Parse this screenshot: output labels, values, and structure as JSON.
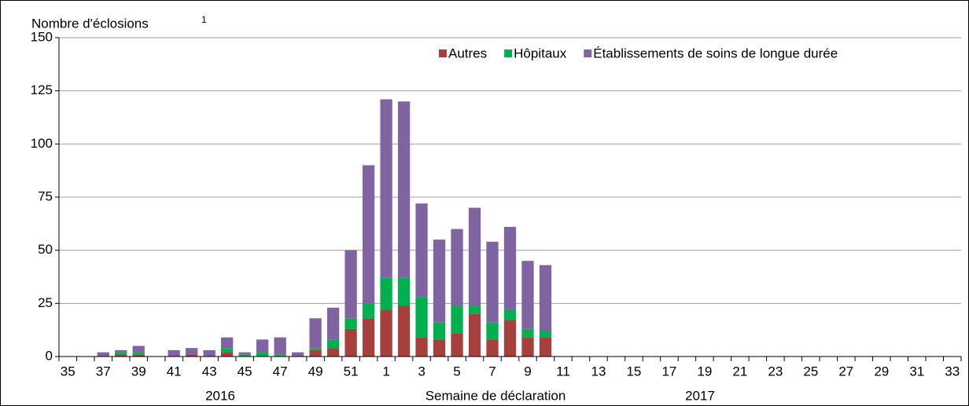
{
  "chart_data": {
    "type": "bar",
    "stacked": true,
    "ylabel": "Nombre d'éclosions",
    "ylabel_note": "1",
    "xlabel": "Semaine de déclaration",
    "annotations": [
      "2016",
      "2017"
    ],
    "categories": [
      "35",
      null,
      "37",
      null,
      "39",
      null,
      "41",
      null,
      "43",
      null,
      "45",
      null,
      "47",
      null,
      "49",
      null,
      "51",
      null,
      "1",
      null,
      "3",
      null,
      "5",
      null,
      "7",
      null,
      "9",
      null,
      "11",
      null,
      "13",
      null,
      "15",
      null,
      "17",
      null,
      "19",
      null,
      "21",
      null,
      "23",
      null,
      "25",
      null,
      "27",
      null,
      "29",
      null,
      "31",
      null,
      "33"
    ],
    "series": [
      {
        "name": "Autres",
        "color": "#a5403d",
        "values": [
          0,
          0,
          0,
          1,
          1,
          0,
          0,
          1,
          0,
          2,
          0,
          0,
          0,
          0,
          3,
          4,
          13,
          18,
          22,
          24,
          9,
          8,
          11,
          20,
          8,
          17,
          9,
          9,
          0,
          0,
          0,
          0,
          0,
          0,
          0,
          0,
          0,
          0,
          0,
          0,
          0,
          0,
          0,
          0,
          0,
          0,
          0,
          0,
          0,
          0,
          0
        ]
      },
      {
        "name": "Hôpitaux",
        "color": "#00b050",
        "values": [
          0,
          0,
          0,
          1,
          1,
          0,
          0,
          0,
          0,
          2,
          1,
          2,
          1,
          0,
          1,
          4,
          5,
          7,
          15,
          13,
          19,
          8,
          13,
          4,
          8,
          5,
          4,
          3,
          0,
          0,
          0,
          0,
          0,
          0,
          0,
          0,
          0,
          0,
          0,
          0,
          0,
          0,
          0,
          0,
          0,
          0,
          0,
          0,
          0,
          0,
          0
        ]
      },
      {
        "name": "Établissements de soins de longue durée",
        "color": "#8064a2",
        "values": [
          0,
          0,
          2,
          1,
          3,
          0,
          3,
          3,
          3,
          5,
          1,
          6,
          8,
          2,
          14,
          15,
          32,
          65,
          84,
          83,
          44,
          39,
          36,
          46,
          38,
          39,
          32,
          31,
          0,
          0,
          0,
          0,
          0,
          0,
          0,
          0,
          0,
          0,
          0,
          0,
          0,
          0,
          0,
          0,
          0,
          0,
          0,
          0,
          0,
          0,
          0
        ]
      }
    ],
    "ylim": [
      0,
      150
    ],
    "yticks": [
      0,
      25,
      50,
      75,
      100,
      125,
      150
    ],
    "grid": true
  }
}
